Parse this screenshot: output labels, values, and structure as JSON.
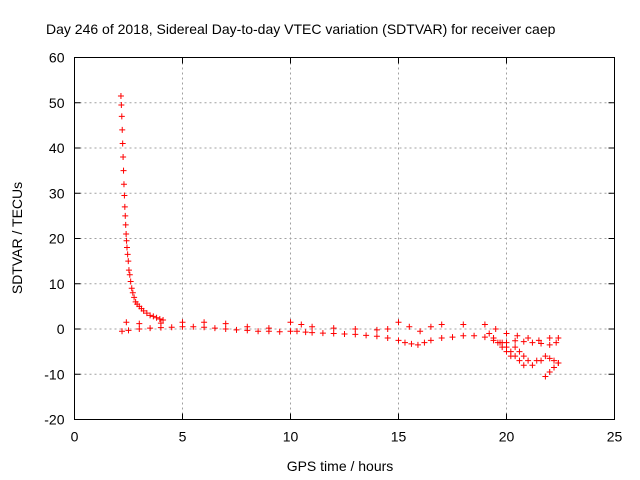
{
  "chart_data": {
    "type": "scatter",
    "title": "Day 246 of 2018, Sidereal Day-to-day VTEC variation (SDTVAR) for receiver caep",
    "xlabel": "GPS time / hours",
    "ylabel": "SDTVAR / TECUs",
    "xlim": [
      0,
      25
    ],
    "ylim": [
      -20,
      60
    ],
    "xticks": [
      0,
      5,
      10,
      15,
      20,
      25
    ],
    "yticks": [
      -20,
      -10,
      0,
      10,
      20,
      30,
      40,
      50,
      60
    ],
    "xtick_labels": [
      "0",
      "5",
      "10",
      "15",
      "20",
      "25"
    ],
    "ytick_labels": [
      "-20",
      "-10",
      "0",
      "10",
      "20",
      "30",
      "40",
      "50",
      "60"
    ],
    "grid": true,
    "marker": "+",
    "color": "#ff0000",
    "series": [
      {
        "name": "SDTVAR",
        "x": [
          2.15,
          2.17,
          2.19,
          2.21,
          2.23,
          2.25,
          2.27,
          2.29,
          2.31,
          2.33,
          2.35,
          2.37,
          2.39,
          2.41,
          2.43,
          2.46,
          2.49,
          2.52,
          2.56,
          2.6,
          2.65,
          2.7,
          2.76,
          2.83,
          2.9,
          3.0,
          3.1,
          3.2,
          3.35,
          3.5,
          3.65,
          3.8,
          3.95,
          4.1,
          2.2,
          2.5,
          3.0,
          3.5,
          4.0,
          4.5,
          5.0,
          5.5,
          6.0,
          6.5,
          7.0,
          7.5,
          8.0,
          8.5,
          9.0,
          9.5,
          10.0,
          10.3,
          10.7,
          11.0,
          11.5,
          12.0,
          12.5,
          13.0,
          13.5,
          14.0,
          14.5,
          15.0,
          15.3,
          15.6,
          15.9,
          16.2,
          16.5,
          17.0,
          17.5,
          18.0,
          18.5,
          19.0,
          19.4,
          19.7,
          20.0,
          20.4,
          20.8,
          21.2,
          21.6,
          22.0,
          22.3,
          2.4,
          3.0,
          4.0,
          5.0,
          6.0,
          7.0,
          8.0,
          9.0,
          10.0,
          10.5,
          11.0,
          12.0,
          13.0,
          14.0,
          14.5,
          15.0,
          15.5,
          16.0,
          16.5,
          17.0,
          18.0,
          19.0,
          19.5,
          20.0,
          20.5,
          21.0,
          21.5,
          22.0,
          22.4,
          19.2,
          19.4,
          19.6,
          19.8,
          20.0,
          20.2,
          20.4,
          20.6,
          20.8,
          21.0,
          21.2,
          21.4,
          21.6,
          21.8,
          22.0,
          22.2,
          22.4,
          19.8,
          20.0,
          20.2,
          20.4,
          20.6,
          20.8,
          21.8,
          22.0,
          22.2,
          22.4
        ],
        "y": [
          51.5,
          49.5,
          47,
          44,
          41,
          38,
          35,
          32,
          29.5,
          27,
          25,
          23,
          21,
          19.5,
          18,
          16.5,
          15,
          13,
          12,
          10.5,
          9,
          8,
          7,
          6,
          5.5,
          5,
          4.5,
          4,
          3.5,
          3,
          2.8,
          2.5,
          2.2,
          2,
          -0.5,
          -0.3,
          0,
          0.2,
          0.3,
          0.4,
          0.5,
          0.5,
          0.4,
          0.2,
          0,
          -0.2,
          -0.3,
          -0.5,
          -0.5,
          -0.6,
          -0.5,
          -0.5,
          -0.7,
          -0.8,
          -0.9,
          -1,
          -1.1,
          -1.2,
          -1.4,
          -1.6,
          -2,
          -2.5,
          -3,
          -3.3,
          -3.5,
          -3,
          -2.5,
          -2,
          -1.8,
          -1.5,
          -1.5,
          -1.8,
          -2.5,
          -3,
          -3,
          -2.6,
          -2.8,
          -3,
          -3.2,
          -3.5,
          -3,
          1.5,
          1.2,
          1.3,
          1.5,
          1.5,
          1.2,
          0.5,
          0.2,
          1.5,
          1,
          0.5,
          0.2,
          0,
          -0.2,
          0,
          1.5,
          0.5,
          -0.5,
          0.5,
          1,
          1,
          1,
          0,
          -1,
          -1.5,
          -2,
          -2.5,
          -2,
          -2,
          -1,
          -2,
          -3,
          -4,
          -5,
          -6,
          -4,
          -5,
          -6,
          -7,
          -8,
          -7,
          -7,
          -6,
          -6.5,
          -7,
          -7.5,
          -3,
          -4,
          -5,
          -6,
          -7,
          -8,
          -10.5,
          -9.5,
          -8.5,
          -7.5
        ]
      }
    ]
  }
}
